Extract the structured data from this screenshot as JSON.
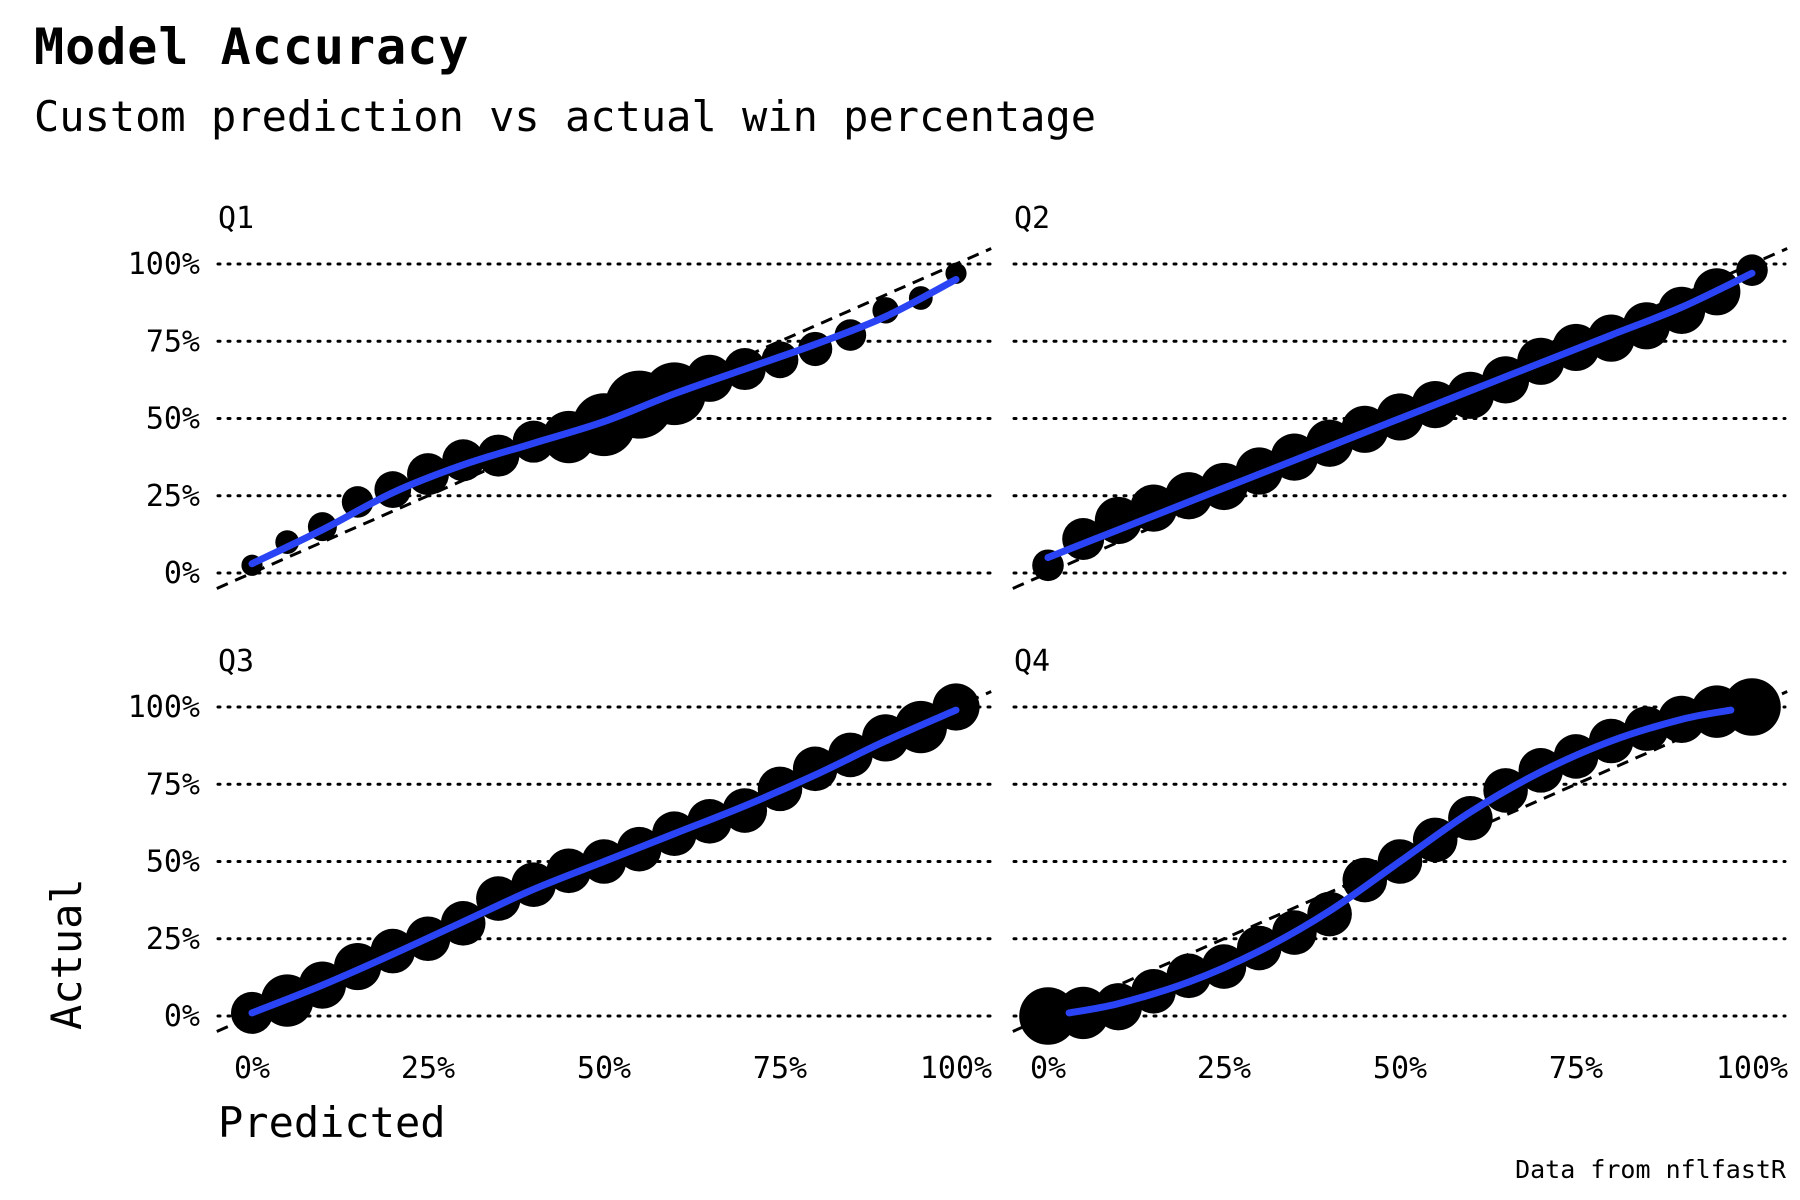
{
  "title": "Model Accuracy",
  "subtitle": "Custom prediction vs actual win percentage",
  "caption": "Data from nflfastR",
  "chart_data": {
    "type": "scatter",
    "xlabel": "Predicted",
    "ylabel": "Actual",
    "xlim": [
      0,
      1
    ],
    "ylim": [
      0,
      1
    ],
    "x_ticks": [
      "0%",
      "25%",
      "50%",
      "75%",
      "100%"
    ],
    "y_ticks": [
      "0%",
      "25%",
      "50%",
      "75%",
      "100%"
    ],
    "grid": "horizontal-dotted",
    "reference_line": "y = x (dashed)",
    "colors": {
      "points": "#000000",
      "fit": "#2a44f5"
    },
    "panels": [
      {
        "label": "Q1",
        "points": [
          {
            "x": 0.0,
            "y": 0.025,
            "s": 1
          },
          {
            "x": 0.05,
            "y": 0.1,
            "s": 1.5
          },
          {
            "x": 0.1,
            "y": 0.15,
            "s": 2.5
          },
          {
            "x": 0.15,
            "y": 0.23,
            "s": 3
          },
          {
            "x": 0.2,
            "y": 0.27,
            "s": 4
          },
          {
            "x": 0.25,
            "y": 0.32,
            "s": 5
          },
          {
            "x": 0.3,
            "y": 0.365,
            "s": 5
          },
          {
            "x": 0.35,
            "y": 0.38,
            "s": 5
          },
          {
            "x": 0.4,
            "y": 0.425,
            "s": 5
          },
          {
            "x": 0.45,
            "y": 0.44,
            "s": 7
          },
          {
            "x": 0.5,
            "y": 0.48,
            "s": 9
          },
          {
            "x": 0.55,
            "y": 0.545,
            "s": 10
          },
          {
            "x": 0.6,
            "y": 0.58,
            "s": 9
          },
          {
            "x": 0.65,
            "y": 0.63,
            "s": 6
          },
          {
            "x": 0.7,
            "y": 0.66,
            "s": 5
          },
          {
            "x": 0.75,
            "y": 0.69,
            "s": 4
          },
          {
            "x": 0.8,
            "y": 0.725,
            "s": 3.5
          },
          {
            "x": 0.85,
            "y": 0.77,
            "s": 3
          },
          {
            "x": 0.9,
            "y": 0.85,
            "s": 2
          },
          {
            "x": 0.95,
            "y": 0.89,
            "s": 1.5
          },
          {
            "x": 1.0,
            "y": 0.97,
            "s": 1
          }
        ],
        "fit": [
          {
            "x": 0.0,
            "y": 0.03
          },
          {
            "x": 0.1,
            "y": 0.14
          },
          {
            "x": 0.2,
            "y": 0.26
          },
          {
            "x": 0.3,
            "y": 0.35
          },
          {
            "x": 0.4,
            "y": 0.42
          },
          {
            "x": 0.5,
            "y": 0.49
          },
          {
            "x": 0.6,
            "y": 0.58
          },
          {
            "x": 0.7,
            "y": 0.66
          },
          {
            "x": 0.8,
            "y": 0.74
          },
          {
            "x": 0.9,
            "y": 0.83
          },
          {
            "x": 1.0,
            "y": 0.95
          }
        ]
      },
      {
        "label": "Q2",
        "points": [
          {
            "x": 0.0,
            "y": 0.025,
            "s": 3
          },
          {
            "x": 0.05,
            "y": 0.11,
            "s": 5
          },
          {
            "x": 0.1,
            "y": 0.17,
            "s": 6
          },
          {
            "x": 0.15,
            "y": 0.21,
            "s": 6
          },
          {
            "x": 0.2,
            "y": 0.25,
            "s": 6
          },
          {
            "x": 0.25,
            "y": 0.28,
            "s": 6
          },
          {
            "x": 0.3,
            "y": 0.33,
            "s": 6
          },
          {
            "x": 0.35,
            "y": 0.375,
            "s": 6
          },
          {
            "x": 0.4,
            "y": 0.42,
            "s": 6
          },
          {
            "x": 0.45,
            "y": 0.465,
            "s": 6
          },
          {
            "x": 0.5,
            "y": 0.505,
            "s": 6
          },
          {
            "x": 0.55,
            "y": 0.545,
            "s": 6
          },
          {
            "x": 0.6,
            "y": 0.575,
            "s": 6
          },
          {
            "x": 0.65,
            "y": 0.625,
            "s": 6
          },
          {
            "x": 0.7,
            "y": 0.685,
            "s": 6
          },
          {
            "x": 0.75,
            "y": 0.73,
            "s": 6
          },
          {
            "x": 0.8,
            "y": 0.76,
            "s": 6
          },
          {
            "x": 0.85,
            "y": 0.8,
            "s": 6
          },
          {
            "x": 0.9,
            "y": 0.85,
            "s": 6
          },
          {
            "x": 0.95,
            "y": 0.91,
            "s": 6
          },
          {
            "x": 1.0,
            "y": 0.98,
            "s": 3
          }
        ],
        "fit": [
          {
            "x": 0.0,
            "y": 0.05
          },
          {
            "x": 0.1,
            "y": 0.14
          },
          {
            "x": 0.2,
            "y": 0.23
          },
          {
            "x": 0.3,
            "y": 0.32
          },
          {
            "x": 0.4,
            "y": 0.41
          },
          {
            "x": 0.5,
            "y": 0.5
          },
          {
            "x": 0.6,
            "y": 0.59
          },
          {
            "x": 0.7,
            "y": 0.68
          },
          {
            "x": 0.8,
            "y": 0.77
          },
          {
            "x": 0.9,
            "y": 0.86
          },
          {
            "x": 1.0,
            "y": 0.97
          }
        ]
      },
      {
        "label": "Q3",
        "points": [
          {
            "x": 0.0,
            "y": 0.01,
            "s": 5
          },
          {
            "x": 0.05,
            "y": 0.05,
            "s": 7
          },
          {
            "x": 0.1,
            "y": 0.1,
            "s": 6
          },
          {
            "x": 0.15,
            "y": 0.16,
            "s": 6
          },
          {
            "x": 0.2,
            "y": 0.21,
            "s": 5.5
          },
          {
            "x": 0.25,
            "y": 0.25,
            "s": 5.5
          },
          {
            "x": 0.3,
            "y": 0.3,
            "s": 5.5
          },
          {
            "x": 0.35,
            "y": 0.38,
            "s": 5.5
          },
          {
            "x": 0.4,
            "y": 0.425,
            "s": 5.5
          },
          {
            "x": 0.45,
            "y": 0.47,
            "s": 5.5
          },
          {
            "x": 0.5,
            "y": 0.5,
            "s": 5.5
          },
          {
            "x": 0.55,
            "y": 0.54,
            "s": 5.5
          },
          {
            "x": 0.6,
            "y": 0.59,
            "s": 5.5
          },
          {
            "x": 0.65,
            "y": 0.63,
            "s": 5.5
          },
          {
            "x": 0.7,
            "y": 0.665,
            "s": 5.5
          },
          {
            "x": 0.75,
            "y": 0.735,
            "s": 5.5
          },
          {
            "x": 0.8,
            "y": 0.8,
            "s": 5.5
          },
          {
            "x": 0.85,
            "y": 0.845,
            "s": 5.5
          },
          {
            "x": 0.9,
            "y": 0.9,
            "s": 6
          },
          {
            "x": 0.95,
            "y": 0.935,
            "s": 7
          },
          {
            "x": 1.0,
            "y": 1.0,
            "s": 6
          }
        ],
        "fit": [
          {
            "x": 0.0,
            "y": 0.01
          },
          {
            "x": 0.1,
            "y": 0.1
          },
          {
            "x": 0.2,
            "y": 0.2
          },
          {
            "x": 0.3,
            "y": 0.305
          },
          {
            "x": 0.4,
            "y": 0.41
          },
          {
            "x": 0.5,
            "y": 0.5
          },
          {
            "x": 0.6,
            "y": 0.59
          },
          {
            "x": 0.7,
            "y": 0.68
          },
          {
            "x": 0.8,
            "y": 0.78
          },
          {
            "x": 0.9,
            "y": 0.89
          },
          {
            "x": 1.0,
            "y": 0.99
          }
        ]
      },
      {
        "label": "Q4",
        "points": [
          {
            "x": 0.0,
            "y": 0.0,
            "s": 8
          },
          {
            "x": 0.05,
            "y": 0.01,
            "s": 7
          },
          {
            "x": 0.1,
            "y": 0.03,
            "s": 6
          },
          {
            "x": 0.15,
            "y": 0.08,
            "s": 5.5
          },
          {
            "x": 0.2,
            "y": 0.13,
            "s": 5.5
          },
          {
            "x": 0.25,
            "y": 0.16,
            "s": 5.5
          },
          {
            "x": 0.3,
            "y": 0.22,
            "s": 5.5
          },
          {
            "x": 0.35,
            "y": 0.27,
            "s": 5.5
          },
          {
            "x": 0.4,
            "y": 0.33,
            "s": 5.5
          },
          {
            "x": 0.45,
            "y": 0.44,
            "s": 5.5
          },
          {
            "x": 0.5,
            "y": 0.5,
            "s": 5.5
          },
          {
            "x": 0.55,
            "y": 0.57,
            "s": 5.5
          },
          {
            "x": 0.6,
            "y": 0.64,
            "s": 5.5
          },
          {
            "x": 0.65,
            "y": 0.73,
            "s": 5.5
          },
          {
            "x": 0.7,
            "y": 0.795,
            "s": 5.5
          },
          {
            "x": 0.75,
            "y": 0.84,
            "s": 5.5
          },
          {
            "x": 0.8,
            "y": 0.89,
            "s": 5.5
          },
          {
            "x": 0.85,
            "y": 0.93,
            "s": 5.5
          },
          {
            "x": 0.9,
            "y": 0.96,
            "s": 6
          },
          {
            "x": 0.95,
            "y": 0.985,
            "s": 7
          },
          {
            "x": 1.0,
            "y": 1.0,
            "s": 8
          }
        ],
        "fit": [
          {
            "x": 0.03,
            "y": 0.01
          },
          {
            "x": 0.1,
            "y": 0.04
          },
          {
            "x": 0.2,
            "y": 0.11
          },
          {
            "x": 0.3,
            "y": 0.21
          },
          {
            "x": 0.4,
            "y": 0.34
          },
          {
            "x": 0.5,
            "y": 0.5
          },
          {
            "x": 0.6,
            "y": 0.66
          },
          {
            "x": 0.7,
            "y": 0.79
          },
          {
            "x": 0.8,
            "y": 0.89
          },
          {
            "x": 0.9,
            "y": 0.96
          },
          {
            "x": 0.97,
            "y": 0.99
          }
        ]
      }
    ]
  }
}
